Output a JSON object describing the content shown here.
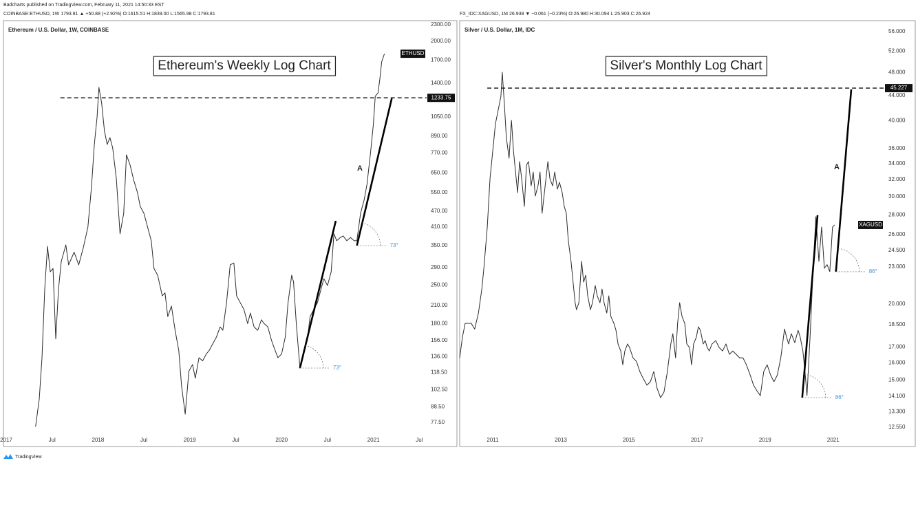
{
  "publisher": "Badcharts published on TradingView.com, February 11, 2021 14:50:33 EST",
  "footer": "TradingView",
  "chart_data": [
    {
      "type": "line",
      "header": "COINBASE:ETHUSD, 1W 1793.81 ▲ +50.88 (+2.92%) O:1615.51 H:1839.00 L:1565.98 C:1793.81",
      "subtitle": "Ethereum / U.S. Dollar, 1W, COINBASE",
      "title": "Ethereum's Weekly Log Chart",
      "last_label": "ETHUSD",
      "marker_label": "A",
      "log_scale": true,
      "grid": false,
      "color": "#2b2b2b",
      "xlim": [
        2016.97,
        2021.58
      ],
      "ylim": [
        71.4,
        2355
      ],
      "xticks": [
        2017,
        {
          "value": 2017.5,
          "label": "Jul"
        },
        2018,
        {
          "value": 2018.5,
          "label": "Jul"
        },
        2019,
        {
          "value": 2019.5,
          "label": "Jul"
        },
        2020,
        {
          "value": 2020.5,
          "label": "Jul"
        },
        2021,
        {
          "value": 2021.5,
          "label": "Jul"
        }
      ],
      "yticks": [
        {
          "value": 2300,
          "label": "2300.00"
        },
        {
          "value": 2000,
          "label": "2000.00"
        },
        {
          "value": 1700,
          "label": "1700.00"
        },
        {
          "value": 1400,
          "label": "1400.00"
        },
        {
          "value": 1050,
          "label": "1050.00"
        },
        {
          "value": 890,
          "label": "890.00"
        },
        {
          "value": 770,
          "label": "770.00"
        },
        {
          "value": 650,
          "label": "650.00"
        },
        {
          "value": 550,
          "label": "550.00"
        },
        {
          "value": 470,
          "label": "470.00"
        },
        {
          "value": 410,
          "label": "410.00"
        },
        {
          "value": 350,
          "label": "350.00"
        },
        {
          "value": 290,
          "label": "290.00"
        },
        {
          "value": 250,
          "label": "250.00"
        },
        {
          "value": 210,
          "label": "210.00"
        },
        {
          "value": 180,
          "label": "180.00"
        },
        {
          "value": 156,
          "label": "156.00"
        },
        {
          "value": 136,
          "label": "136.00"
        },
        {
          "value": 118.5,
          "label": "118.50"
        },
        {
          "value": 102.5,
          "label": "102.50"
        },
        {
          "value": 88.5,
          "label": "88.50"
        },
        {
          "value": 77.5,
          "label": "77.50"
        }
      ],
      "x": [
        2017.32,
        2017.36,
        2017.39,
        2017.42,
        2017.45,
        2017.48,
        2017.51,
        2017.54,
        2017.57,
        2017.6,
        2017.65,
        2017.68,
        2017.74,
        2017.79,
        2017.84,
        2017.89,
        2017.93,
        2017.96,
        2017.99,
        2018.01,
        2018.04,
        2018.07,
        2018.1,
        2018.13,
        2018.16,
        2018.2,
        2018.24,
        2018.28,
        2018.31,
        2018.35,
        2018.39,
        2018.43,
        2018.46,
        2018.5,
        2018.54,
        2018.58,
        2018.61,
        2018.65,
        2018.7,
        2018.73,
        2018.76,
        2018.8,
        2018.84,
        2018.88,
        2018.91,
        2018.95,
        2018.99,
        2019.03,
        2019.06,
        2019.1,
        2019.14,
        2019.18,
        2019.21,
        2019.29,
        2019.33,
        2019.36,
        2019.4,
        2019.44,
        2019.48,
        2019.51,
        2019.55,
        2019.59,
        2019.63,
        2019.66,
        2019.7,
        2019.74,
        2019.78,
        2019.81,
        2019.85,
        2019.89,
        2019.93,
        2019.96,
        2020.0,
        2020.04,
        2020.07,
        2020.11,
        2020.13,
        2020.16,
        2020.2,
        2020.24,
        2020.28,
        2020.31,
        2020.35,
        2020.39,
        2020.43,
        2020.46,
        2020.5,
        2020.54,
        2020.57,
        2020.6,
        2020.64,
        2020.67,
        2020.71,
        2020.75,
        2020.79,
        2020.82,
        2020.86,
        2020.9,
        2020.93,
        2020.97,
        2021.0,
        2021.02,
        2021.05,
        2021.07,
        2021.09,
        2021.12
      ],
      "values": [
        74.8,
        94.6,
        134.6,
        241.9,
        348,
        280,
        288,
        158,
        241.9,
        306,
        352,
        297,
        331,
        297,
        344,
        410,
        583,
        829,
        1048,
        1349,
        1178,
        932,
        829,
        879,
        805,
        618,
        387,
        461,
        759,
        695,
        610,
        550,
        489,
        461,
        410,
        365,
        288,
        272,
        228,
        234,
        191,
        209,
        170,
        143,
        106,
        83.2,
        120,
        127,
        113,
        134.6,
        131,
        139,
        143,
        160.5,
        175,
        170,
        215,
        297,
        302,
        228,
        215,
        203,
        180,
        197,
        175,
        170,
        186,
        180,
        175,
        156,
        143,
        134.6,
        139,
        160.5,
        215,
        272,
        257,
        180,
        123,
        143,
        156,
        191,
        203,
        215,
        242,
        264,
        249,
        280,
        387,
        365,
        375,
        380,
        365,
        375,
        365,
        365,
        461,
        518,
        590,
        780,
        988,
        1250,
        1287,
        1447,
        1676,
        1797
      ],
      "hline": {
        "x_start": 2017.59,
        "value": 1233.75
      },
      "trendlines": [
        {
          "x": [
            2020.2,
            2020.59
          ],
          "y": [
            123.2,
            432
          ],
          "label": "73°"
        },
        {
          "x": [
            2020.82,
            2021.2
          ],
          "y": [
            350,
            1228
          ],
          "label": "73°"
        }
      ]
    },
    {
      "type": "line",
      "header": "FX_IDC:XAGUSD, 1M 26.938 ▼ −0.061 (−0.23%) O:26.980 H:30.094 L:25.903 C:26.924",
      "subtitle": "Silver / U.S. Dollar, 1M, IDC",
      "title": "Silver's Monthly Log Chart",
      "last_label": "XAGUSD",
      "marker_label": "A",
      "log_scale": true,
      "grid": false,
      "color": "#2b2b2b",
      "xlim": [
        2010.07,
        2022.5
      ],
      "ylim": [
        12.32,
        58.07
      ],
      "xticks": [
        2011,
        2013,
        2015,
        2017,
        2019,
        2021
      ],
      "yticks": [
        {
          "value": 56,
          "label": "56.000"
        },
        {
          "value": 52,
          "label": "52.000"
        },
        {
          "value": 48,
          "label": "48.000"
        },
        {
          "value": 44,
          "label": "44.000"
        },
        {
          "value": 40,
          "label": "40.000"
        },
        {
          "value": 36,
          "label": "36.000"
        },
        {
          "value": 34,
          "label": "34.000"
        },
        {
          "value": 32,
          "label": "32.000"
        },
        {
          "value": 30,
          "label": "30.000"
        },
        {
          "value": 28,
          "label": "28.000"
        },
        {
          "value": 26,
          "label": "26.000"
        },
        {
          "value": 24.5,
          "label": "24.500"
        },
        {
          "value": 23,
          "label": "23.000"
        },
        {
          "value": 20,
          "label": "20.000"
        },
        {
          "value": 18.5,
          "label": "18.500"
        },
        {
          "value": 17,
          "label": "17.000"
        },
        {
          "value": 16,
          "label": "16.000"
        },
        {
          "value": 15,
          "label": "15.000"
        },
        {
          "value": 14.1,
          "label": "14.100"
        },
        {
          "value": 13.3,
          "label": "13.300"
        },
        {
          "value": 12.55,
          "label": "12.550"
        }
      ],
      "x": [
        2010.03,
        2010.11,
        2010.19,
        2010.37,
        2010.47,
        2010.58,
        2010.68,
        2010.74,
        2010.84,
        2010.92,
        2011.0,
        2011.08,
        2011.16,
        2011.24,
        2011.28,
        2011.34,
        2011.4,
        2011.48,
        2011.55,
        2011.61,
        2011.69,
        2011.73,
        2011.79,
        2011.85,
        2011.93,
        2011.99,
        2012.05,
        2012.13,
        2012.19,
        2012.25,
        2012.33,
        2012.39,
        2012.45,
        2012.54,
        2012.62,
        2012.68,
        2012.76,
        2012.82,
        2012.9,
        2012.96,
        2013.04,
        2013.1,
        2013.16,
        2013.22,
        2013.3,
        2013.36,
        2013.42,
        2013.46,
        2013.53,
        2013.61,
        2013.67,
        2013.73,
        2013.79,
        2013.87,
        2013.93,
        2014.01,
        2014.07,
        2014.15,
        2014.21,
        2014.27,
        2014.35,
        2014.41,
        2014.47,
        2014.56,
        2014.62,
        2014.68,
        2014.76,
        2014.82,
        2014.88,
        2014.96,
        2015.02,
        2015.12,
        2015.22,
        2015.32,
        2015.42,
        2015.53,
        2015.63,
        2015.73,
        2015.83,
        2015.93,
        2016.03,
        2016.13,
        2016.23,
        2016.29,
        2016.37,
        2016.43,
        2016.49,
        2016.56,
        2016.64,
        2016.7,
        2016.78,
        2016.84,
        2016.9,
        2016.98,
        2017.04,
        2017.1,
        2017.18,
        2017.24,
        2017.3,
        2017.36,
        2017.44,
        2017.55,
        2017.65,
        2017.75,
        2017.85,
        2017.95,
        2018.05,
        2018.15,
        2018.25,
        2018.35,
        2018.45,
        2018.56,
        2018.66,
        2018.76,
        2018.86,
        2018.96,
        2019.06,
        2019.16,
        2019.26,
        2019.36,
        2019.46,
        2019.57,
        2019.63,
        2019.69,
        2019.77,
        2019.87,
        2019.97,
        2020.03,
        2020.11,
        2020.17,
        2020.23,
        2020.33,
        2020.41,
        2020.49,
        2020.58,
        2020.66,
        2020.74,
        2020.82,
        2020.9,
        2020.98,
        2021.04
      ],
      "values": [
        16.31,
        17.64,
        18.58,
        18.58,
        18.19,
        19.32,
        21.16,
        22.89,
        26.75,
        32.1,
        35.63,
        39.52,
        41.63,
        43.84,
        48.03,
        42.72,
        37.51,
        34.7,
        40.03,
        35.63,
        32.1,
        30.47,
        34.26,
        32.1,
        28.92,
        33.8,
        34.26,
        31.26,
        32.93,
        30.07,
        31.26,
        32.93,
        28.18,
        31.26,
        34.26,
        32.1,
        31.26,
        32.93,
        30.87,
        31.68,
        30.47,
        28.92,
        28.18,
        25.4,
        23.49,
        21.72,
        20.09,
        19.57,
        20.09,
        23.49,
        21.72,
        22.29,
        20.62,
        19.57,
        20.09,
        21.44,
        20.62,
        20.09,
        21.16,
        20.09,
        19.32,
        20.62,
        19.07,
        18.58,
        18.1,
        17.19,
        16.74,
        15.89,
        16.74,
        17.19,
        16.96,
        16.31,
        16.1,
        15.49,
        15.09,
        14.71,
        14.9,
        15.49,
        14.52,
        14.03,
        14.33,
        15.49,
        17.19,
        17.87,
        16.31,
        18.58,
        20.09,
        19.07,
        18.58,
        17.19,
        16.96,
        15.89,
        17.19,
        17.64,
        18.34,
        18.1,
        17.19,
        17.41,
        16.96,
        16.74,
        17.19,
        17.41,
        16.96,
        16.74,
        17.19,
        16.53,
        16.74,
        16.53,
        16.31,
        16.31,
        15.89,
        15.29,
        14.71,
        14.4,
        14.14,
        15.49,
        15.89,
        15.29,
        14.9,
        15.29,
        16.31,
        18.19,
        17.64,
        17.19,
        17.87,
        17.28,
        18.1,
        17.64,
        16.74,
        15.49,
        14.14,
        18.1,
        22.89,
        27.81,
        23.49,
        26.75,
        22.89,
        23.2,
        22.6,
        26.75,
        26.96
      ],
      "hline": {
        "x_start": 2010.84,
        "value": 45.227
      },
      "trendlines": [
        {
          "x": [
            2020.09,
            2020.54
          ],
          "y": [
            14.03,
            27.97
          ],
          "label": "86°"
        },
        {
          "x": [
            2021.08,
            2021.53
          ],
          "y": [
            22.59,
            45.0
          ],
          "label": "86°"
        }
      ]
    }
  ]
}
